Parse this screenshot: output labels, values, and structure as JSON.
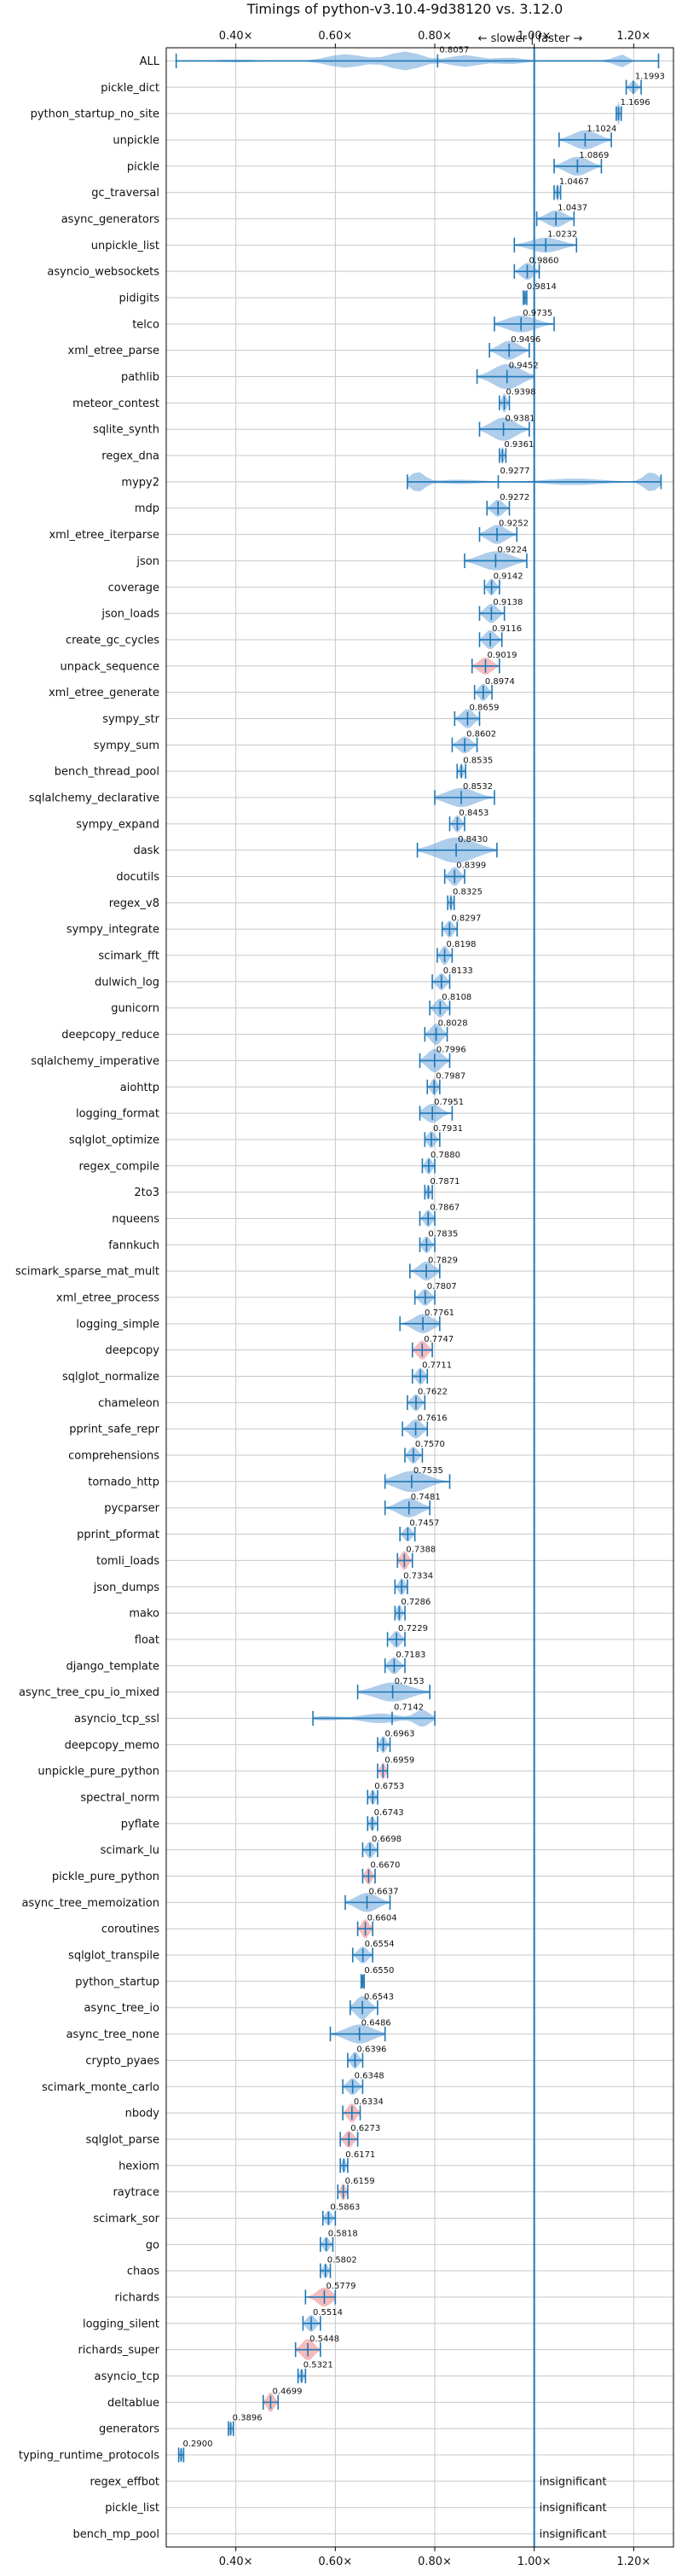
{
  "chart_data": {
    "type": "violin",
    "title": "Timings of python-v3.10.4-9d38120 vs. 3.12.0",
    "direction_label": "← slower | faster →",
    "insignificant_text": "insignificant",
    "xlim": [
      0.26,
      1.28
    ],
    "x_ticks": [
      0.4,
      0.6,
      0.8,
      1.0,
      1.2
    ],
    "x_tick_labels": [
      "0.40×",
      "0.60×",
      "0.80×",
      "1.00×",
      "1.20×"
    ],
    "reference_x": 1.0,
    "grid": true,
    "colors": {
      "violin": "#4a90d2",
      "violin_highlight": "#e8686c",
      "whisker": "#1f77b4",
      "reference": "#1f77b4",
      "grid": "#c8c8c8"
    },
    "benchmarks": [
      {
        "name": "ALL",
        "value": "0.8057",
        "mean": 0.8057,
        "min": 0.28,
        "max": 1.25,
        "width": 0.45,
        "shape": "all"
      },
      {
        "name": "pickle_dict",
        "value": "1.1993",
        "mean": 1.1993,
        "min": 1.185,
        "max": 1.215,
        "width": 0.3
      },
      {
        "name": "python_startup_no_site",
        "value": "1.1696",
        "mean": 1.1696,
        "min": 1.165,
        "max": 1.175,
        "width": 0.55
      },
      {
        "name": "unpickle",
        "value": "1.1024",
        "mean": 1.1024,
        "min": 1.05,
        "max": 1.155,
        "width": 0.45
      },
      {
        "name": "pickle",
        "value": "1.0869",
        "mean": 1.0869,
        "min": 1.04,
        "max": 1.135,
        "width": 0.45
      },
      {
        "name": "gc_traversal",
        "value": "1.0467",
        "mean": 1.0467,
        "min": 1.04,
        "max": 1.053,
        "width": 0.4
      },
      {
        "name": "async_generators",
        "value": "1.0437",
        "mean": 1.0437,
        "min": 1.005,
        "max": 1.08,
        "width": 0.4
      },
      {
        "name": "unpickle_list",
        "value": "1.0232",
        "mean": 1.0232,
        "min": 0.96,
        "max": 1.085,
        "width": 0.35
      },
      {
        "name": "asyncio_websockets",
        "value": "0.9860",
        "mean": 0.986,
        "min": 0.96,
        "max": 1.01,
        "width": 0.4
      },
      {
        "name": "pidigits",
        "value": "0.9814",
        "mean": 0.9814,
        "min": 0.978,
        "max": 0.985,
        "width": 0.35
      },
      {
        "name": "telco",
        "value": "0.9735",
        "mean": 0.9735,
        "min": 0.92,
        "max": 1.04,
        "width": 0.4
      },
      {
        "name": "xml_etree_parse",
        "value": "0.9496",
        "mean": 0.9496,
        "min": 0.91,
        "max": 0.99,
        "width": 0.45
      },
      {
        "name": "pathlib",
        "value": "0.9452",
        "mean": 0.9452,
        "min": 0.885,
        "max": 1.0,
        "width": 0.6
      },
      {
        "name": "meteor_contest",
        "value": "0.9398",
        "mean": 0.9398,
        "min": 0.93,
        "max": 0.95,
        "width": 0.45
      },
      {
        "name": "sqlite_synth",
        "value": "0.9381",
        "mean": 0.9381,
        "min": 0.89,
        "max": 0.99,
        "width": 0.55
      },
      {
        "name": "regex_dna",
        "value": "0.9361",
        "mean": 0.9361,
        "min": 0.93,
        "max": 0.943,
        "width": 0.4
      },
      {
        "name": "mypy2",
        "value": "0.9277",
        "mean": 0.9277,
        "min": 0.745,
        "max": 1.255,
        "width": 0.45,
        "shape": "mypy2"
      },
      {
        "name": "mdp",
        "value": "0.9272",
        "mean": 0.9272,
        "min": 0.905,
        "max": 0.95,
        "width": 0.4
      },
      {
        "name": "xml_etree_iterparse",
        "value": "0.9252",
        "mean": 0.9252,
        "min": 0.89,
        "max": 0.965,
        "width": 0.45
      },
      {
        "name": "json",
        "value": "0.9224",
        "mean": 0.9224,
        "min": 0.86,
        "max": 0.985,
        "width": 0.45
      },
      {
        "name": "coverage",
        "value": "0.9142",
        "mean": 0.9142,
        "min": 0.9,
        "max": 0.93,
        "width": 0.4
      },
      {
        "name": "json_loads",
        "value": "0.9138",
        "mean": 0.9138,
        "min": 0.89,
        "max": 0.94,
        "width": 0.45
      },
      {
        "name": "create_gc_cycles",
        "value": "0.9116",
        "mean": 0.9116,
        "min": 0.89,
        "max": 0.935,
        "width": 0.45
      },
      {
        "name": "unpack_sequence",
        "value": "0.9019",
        "mean": 0.9019,
        "min": 0.875,
        "max": 0.93,
        "width": 0.4,
        "highlight": true
      },
      {
        "name": "xml_etree_generate",
        "value": "0.8974",
        "mean": 0.8974,
        "min": 0.88,
        "max": 0.915,
        "width": 0.4
      },
      {
        "name": "sympy_str",
        "value": "0.8659",
        "mean": 0.8659,
        "min": 0.84,
        "max": 0.89,
        "width": 0.45
      },
      {
        "name": "sympy_sum",
        "value": "0.8602",
        "mean": 0.8602,
        "min": 0.835,
        "max": 0.885,
        "width": 0.4
      },
      {
        "name": "bench_thread_pool",
        "value": "0.8535",
        "mean": 0.8535,
        "min": 0.845,
        "max": 0.862,
        "width": 0.35
      },
      {
        "name": "sqlalchemy_declarative",
        "value": "0.8532",
        "mean": 0.8532,
        "min": 0.8,
        "max": 0.92,
        "width": 0.45
      },
      {
        "name": "sympy_expand",
        "value": "0.8453",
        "mean": 0.8453,
        "min": 0.83,
        "max": 0.86,
        "width": 0.4
      },
      {
        "name": "dask",
        "value": "0.8430",
        "mean": 0.843,
        "min": 0.765,
        "max": 0.925,
        "width": 0.6
      },
      {
        "name": "docutils",
        "value": "0.8399",
        "mean": 0.8399,
        "min": 0.82,
        "max": 0.86,
        "width": 0.45
      },
      {
        "name": "regex_v8",
        "value": "0.8325",
        "mean": 0.8325,
        "min": 0.826,
        "max": 0.839,
        "width": 0.4
      },
      {
        "name": "sympy_integrate",
        "value": "0.8297",
        "mean": 0.8297,
        "min": 0.815,
        "max": 0.845,
        "width": 0.4
      },
      {
        "name": "scimark_fft",
        "value": "0.8198",
        "mean": 0.8198,
        "min": 0.805,
        "max": 0.835,
        "width": 0.45
      },
      {
        "name": "dulwich_log",
        "value": "0.8133",
        "mean": 0.8133,
        "min": 0.795,
        "max": 0.83,
        "width": 0.4
      },
      {
        "name": "gunicorn",
        "value": "0.8108",
        "mean": 0.8108,
        "min": 0.79,
        "max": 0.83,
        "width": 0.45
      },
      {
        "name": "deepcopy_reduce",
        "value": "0.8028",
        "mean": 0.8028,
        "min": 0.78,
        "max": 0.825,
        "width": 0.5
      },
      {
        "name": "sqlalchemy_imperative",
        "value": "0.7996",
        "mean": 0.7996,
        "min": 0.77,
        "max": 0.83,
        "width": 0.55
      },
      {
        "name": "aiohttp",
        "value": "0.7987",
        "mean": 0.7987,
        "min": 0.785,
        "max": 0.81,
        "width": 0.4
      },
      {
        "name": "logging_format",
        "value": "0.7951",
        "mean": 0.7951,
        "min": 0.77,
        "max": 0.835,
        "width": 0.45
      },
      {
        "name": "sqlglot_optimize",
        "value": "0.7931",
        "mean": 0.7931,
        "min": 0.78,
        "max": 0.81,
        "width": 0.4
      },
      {
        "name": "regex_compile",
        "value": "0.7880",
        "mean": 0.788,
        "min": 0.775,
        "max": 0.8,
        "width": 0.4
      },
      {
        "name": "2to3",
        "value": "0.7871",
        "mean": 0.7871,
        "min": 0.78,
        "max": 0.795,
        "width": 0.35
      },
      {
        "name": "nqueens",
        "value": "0.7867",
        "mean": 0.7867,
        "min": 0.77,
        "max": 0.8,
        "width": 0.4
      },
      {
        "name": "fannkuch",
        "value": "0.7835",
        "mean": 0.7835,
        "min": 0.77,
        "max": 0.8,
        "width": 0.4
      },
      {
        "name": "scimark_sparse_mat_mult",
        "value": "0.7829",
        "mean": 0.7829,
        "min": 0.75,
        "max": 0.81,
        "width": 0.45
      },
      {
        "name": "xml_etree_process",
        "value": "0.7807",
        "mean": 0.7807,
        "min": 0.76,
        "max": 0.8,
        "width": 0.4
      },
      {
        "name": "logging_simple",
        "value": "0.7761",
        "mean": 0.7761,
        "min": 0.73,
        "max": 0.81,
        "width": 0.45
      },
      {
        "name": "deepcopy",
        "value": "0.7747",
        "mean": 0.7747,
        "min": 0.755,
        "max": 0.795,
        "width": 0.45,
        "highlight": true
      },
      {
        "name": "sqlglot_normalize",
        "value": "0.7711",
        "mean": 0.7711,
        "min": 0.755,
        "max": 0.785,
        "width": 0.4
      },
      {
        "name": "chameleon",
        "value": "0.7622",
        "mean": 0.7622,
        "min": 0.745,
        "max": 0.78,
        "width": 0.4
      },
      {
        "name": "pprint_safe_repr",
        "value": "0.7616",
        "mean": 0.7616,
        "min": 0.735,
        "max": 0.785,
        "width": 0.45
      },
      {
        "name": "comprehensions",
        "value": "0.7570",
        "mean": 0.757,
        "min": 0.74,
        "max": 0.775,
        "width": 0.4
      },
      {
        "name": "tornado_http",
        "value": "0.7535",
        "mean": 0.7535,
        "min": 0.7,
        "max": 0.83,
        "width": 0.5
      },
      {
        "name": "pycparser",
        "value": "0.7481",
        "mean": 0.7481,
        "min": 0.7,
        "max": 0.79,
        "width": 0.45
      },
      {
        "name": "pprint_pformat",
        "value": "0.7457",
        "mean": 0.7457,
        "min": 0.73,
        "max": 0.76,
        "width": 0.35
      },
      {
        "name": "tomli_loads",
        "value": "0.7388",
        "mean": 0.7388,
        "min": 0.725,
        "max": 0.755,
        "width": 0.45,
        "highlight": true
      },
      {
        "name": "json_dumps",
        "value": "0.7334",
        "mean": 0.7334,
        "min": 0.72,
        "max": 0.745,
        "width": 0.4
      },
      {
        "name": "mako",
        "value": "0.7286",
        "mean": 0.7286,
        "min": 0.72,
        "max": 0.74,
        "width": 0.4
      },
      {
        "name": "float",
        "value": "0.7229",
        "mean": 0.7229,
        "min": 0.705,
        "max": 0.74,
        "width": 0.4
      },
      {
        "name": "django_template",
        "value": "0.7183",
        "mean": 0.7183,
        "min": 0.7,
        "max": 0.74,
        "width": 0.4
      },
      {
        "name": "async_tree_cpu_io_mixed",
        "value": "0.7153",
        "mean": 0.7153,
        "min": 0.645,
        "max": 0.79,
        "width": 0.45
      },
      {
        "name": "asyncio_tcp_ssl",
        "value": "0.7142",
        "mean": 0.7142,
        "min": 0.555,
        "max": 0.8,
        "width": 0.4,
        "shape": "tcp_ssl"
      },
      {
        "name": "deepcopy_memo",
        "value": "0.6963",
        "mean": 0.6963,
        "min": 0.685,
        "max": 0.71,
        "width": 0.4
      },
      {
        "name": "unpickle_pure_python",
        "value": "0.6959",
        "mean": 0.6959,
        "min": 0.685,
        "max": 0.705,
        "width": 0.4,
        "highlight": true
      },
      {
        "name": "spectral_norm",
        "value": "0.6753",
        "mean": 0.6753,
        "min": 0.665,
        "max": 0.685,
        "width": 0.35
      },
      {
        "name": "pyflate",
        "value": "0.6743",
        "mean": 0.6743,
        "min": 0.665,
        "max": 0.685,
        "width": 0.35
      },
      {
        "name": "scimark_lu",
        "value": "0.6698",
        "mean": 0.6698,
        "min": 0.655,
        "max": 0.685,
        "width": 0.4
      },
      {
        "name": "pickle_pure_python",
        "value": "0.6670",
        "mean": 0.667,
        "min": 0.655,
        "max": 0.68,
        "width": 0.4,
        "highlight": true
      },
      {
        "name": "async_tree_memoization",
        "value": "0.6637",
        "mean": 0.6637,
        "min": 0.62,
        "max": 0.71,
        "width": 0.45
      },
      {
        "name": "coroutines",
        "value": "0.6604",
        "mean": 0.6604,
        "min": 0.645,
        "max": 0.675,
        "width": 0.45,
        "highlight": true
      },
      {
        "name": "sqlglot_transpile",
        "value": "0.6554",
        "mean": 0.6554,
        "min": 0.635,
        "max": 0.675,
        "width": 0.4
      },
      {
        "name": "python_startup",
        "value": "0.6550",
        "mean": 0.655,
        "min": 0.652,
        "max": 0.658,
        "width": 0.3
      },
      {
        "name": "async_tree_io",
        "value": "0.6543",
        "mean": 0.6543,
        "min": 0.63,
        "max": 0.685,
        "width": 0.55
      },
      {
        "name": "async_tree_none",
        "value": "0.6486",
        "mean": 0.6486,
        "min": 0.59,
        "max": 0.7,
        "width": 0.45
      },
      {
        "name": "crypto_pyaes",
        "value": "0.6396",
        "mean": 0.6396,
        "min": 0.625,
        "max": 0.655,
        "width": 0.4
      },
      {
        "name": "scimark_monte_carlo",
        "value": "0.6348",
        "mean": 0.6348,
        "min": 0.615,
        "max": 0.655,
        "width": 0.4
      },
      {
        "name": "nbody",
        "value": "0.6334",
        "mean": 0.6334,
        "min": 0.615,
        "max": 0.65,
        "width": 0.45,
        "highlight": true
      },
      {
        "name": "sqlglot_parse",
        "value": "0.6273",
        "mean": 0.6273,
        "min": 0.61,
        "max": 0.645,
        "width": 0.4,
        "highlight": true
      },
      {
        "name": "hexiom",
        "value": "0.6171",
        "mean": 0.6171,
        "min": 0.61,
        "max": 0.625,
        "width": 0.35
      },
      {
        "name": "raytrace",
        "value": "0.6159",
        "mean": 0.6159,
        "min": 0.605,
        "max": 0.625,
        "width": 0.4,
        "highlight": true
      },
      {
        "name": "scimark_sor",
        "value": "0.5863",
        "mean": 0.5863,
        "min": 0.575,
        "max": 0.6,
        "width": 0.35
      },
      {
        "name": "go",
        "value": "0.5818",
        "mean": 0.5818,
        "min": 0.57,
        "max": 0.595,
        "width": 0.35
      },
      {
        "name": "chaos",
        "value": "0.5802",
        "mean": 0.5802,
        "min": 0.57,
        "max": 0.59,
        "width": 0.35
      },
      {
        "name": "richards",
        "value": "0.5779",
        "mean": 0.5779,
        "min": 0.54,
        "max": 0.6,
        "width": 0.45,
        "highlight": true
      },
      {
        "name": "logging_silent",
        "value": "0.5514",
        "mean": 0.5514,
        "min": 0.535,
        "max": 0.57,
        "width": 0.4
      },
      {
        "name": "richards_super",
        "value": "0.5448",
        "mean": 0.5448,
        "min": 0.52,
        "max": 0.57,
        "width": 0.5,
        "highlight": true
      },
      {
        "name": "asyncio_tcp",
        "value": "0.5321",
        "mean": 0.5321,
        "min": 0.525,
        "max": 0.54,
        "width": 0.35
      },
      {
        "name": "deltablue",
        "value": "0.4699",
        "mean": 0.4699,
        "min": 0.455,
        "max": 0.485,
        "width": 0.45,
        "highlight": true
      },
      {
        "name": "generators",
        "value": "0.3896",
        "mean": 0.3896,
        "min": 0.385,
        "max": 0.395,
        "width": 0.35
      },
      {
        "name": "typing_runtime_protocols",
        "value": "0.2900",
        "mean": 0.29,
        "min": 0.285,
        "max": 0.295,
        "width": 0.35
      },
      {
        "name": "regex_effbot",
        "value": null,
        "insignificant": true
      },
      {
        "name": "pickle_list",
        "value": null,
        "insignificant": true
      },
      {
        "name": "bench_mp_pool",
        "value": null,
        "insignificant": true
      }
    ]
  }
}
